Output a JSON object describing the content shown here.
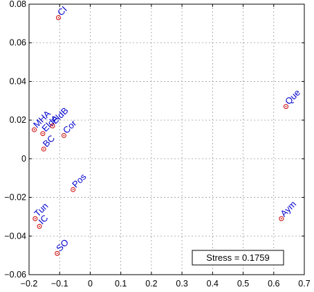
{
  "chart_data": {
    "type": "scatter",
    "title": "",
    "xlabel": "",
    "ylabel": "",
    "xlim": [
      -0.2,
      0.7
    ],
    "ylim": [
      -0.06,
      0.08
    ],
    "grid": true,
    "xticks": [
      "−0.2",
      "−0.1",
      "0",
      "0.1",
      "0.2",
      "0.3",
      "0.4",
      "0.5",
      "0.6",
      "0.7"
    ],
    "yticks": [
      "0.08",
      "0.06",
      "0.04",
      "0.02",
      "0",
      "−0.02",
      "−0.04",
      "−0.06"
    ],
    "xtick_values": [
      -0.2,
      -0.1,
      0,
      0.1,
      0.2,
      0.3,
      0.4,
      0.5,
      0.6,
      0.7
    ],
    "ytick_values": [
      0.08,
      0.06,
      0.04,
      0.02,
      0,
      -0.02,
      -0.04,
      -0.06
    ],
    "points": [
      {
        "label": "CI",
        "x": -0.104,
        "y": 0.073
      },
      {
        "label": "MHA",
        "x": -0.183,
        "y": 0.015
      },
      {
        "label": "EldA",
        "x": -0.155,
        "y": 0.013
      },
      {
        "label": "EldB",
        "x": -0.123,
        "y": 0.017
      },
      {
        "label": "Cor",
        "x": -0.086,
        "y": 0.012
      },
      {
        "label": "BC",
        "x": -0.152,
        "y": 0.005
      },
      {
        "label": "Pos",
        "x": -0.056,
        "y": -0.016
      },
      {
        "label": "Tun",
        "x": -0.18,
        "y": -0.031
      },
      {
        "label": "IC",
        "x": -0.166,
        "y": -0.035
      },
      {
        "label": "SO",
        "x": -0.108,
        "y": -0.049
      },
      {
        "label": "Que",
        "x": 0.64,
        "y": 0.027
      },
      {
        "label": "Aym",
        "x": 0.625,
        "y": -0.031
      }
    ],
    "annotation": "Stress = 0.1759",
    "marker_color": "#cc0000",
    "label_color": "#0000cc"
  }
}
